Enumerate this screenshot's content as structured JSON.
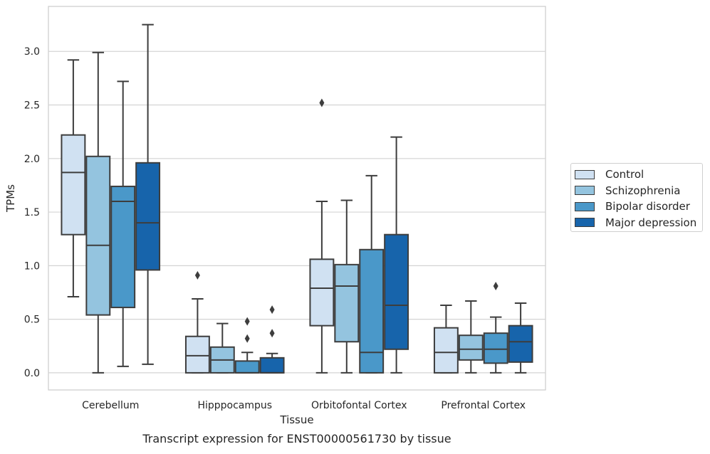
{
  "chart_data": {
    "type": "box",
    "title": "",
    "caption": "Transcript expression for ENST00000561730 by tissue",
    "xlabel": "Tissue",
    "ylabel": "TPMs",
    "ylim": [
      -0.16,
      3.42
    ],
    "yticks": [
      "0.0",
      "0.5",
      "1.0",
      "1.5",
      "2.0",
      "2.5",
      "3.0"
    ],
    "grid": "horizontal",
    "legend_position": "right",
    "categories": [
      "Cerebellum",
      "Hipppocampus",
      "Orbitofontal Cortex",
      "Prefrontal Cortex"
    ],
    "series": [
      {
        "name": "Control",
        "color": "#d0e1f2",
        "boxes": [
          {
            "whisker_low": 0.71,
            "q1": 1.29,
            "median": 1.87,
            "q3": 2.22,
            "whisker_high": 2.92,
            "outliers": []
          },
          {
            "whisker_low": 0.0,
            "q1": 0.0,
            "median": 0.16,
            "q3": 0.34,
            "whisker_high": 0.69,
            "outliers": [
              0.91
            ]
          },
          {
            "whisker_low": 0.0,
            "q1": 0.44,
            "median": 0.79,
            "q3": 1.06,
            "whisker_high": 1.6,
            "outliers": [
              2.52
            ]
          },
          {
            "whisker_low": 0.0,
            "q1": 0.0,
            "median": 0.19,
            "q3": 0.42,
            "whisker_high": 0.63,
            "outliers": []
          }
        ]
      },
      {
        "name": "Schizophrenia",
        "color": "#94c4df",
        "boxes": [
          {
            "whisker_low": 0.0,
            "q1": 0.54,
            "median": 1.19,
            "q3": 2.02,
            "whisker_high": 2.99,
            "outliers": []
          },
          {
            "whisker_low": 0.0,
            "q1": 0.0,
            "median": 0.12,
            "q3": 0.24,
            "whisker_high": 0.46,
            "outliers": []
          },
          {
            "whisker_low": 0.0,
            "q1": 0.29,
            "median": 0.81,
            "q3": 1.01,
            "whisker_high": 1.61,
            "outliers": []
          },
          {
            "whisker_low": 0.0,
            "q1": 0.12,
            "median": 0.22,
            "q3": 0.35,
            "whisker_high": 0.67,
            "outliers": []
          }
        ]
      },
      {
        "name": "Bipolar disorder",
        "color": "#4a98c9",
        "boxes": [
          {
            "whisker_low": 0.06,
            "q1": 0.61,
            "median": 1.6,
            "q3": 1.74,
            "whisker_high": 2.72,
            "outliers": []
          },
          {
            "whisker_low": 0.0,
            "q1": 0.0,
            "median": 0.0,
            "q3": 0.11,
            "whisker_high": 0.19,
            "outliers": [
              0.32,
              0.48
            ]
          },
          {
            "whisker_low": 0.0,
            "q1": 0.0,
            "median": 0.19,
            "q3": 1.15,
            "whisker_high": 1.84,
            "outliers": []
          },
          {
            "whisker_low": 0.0,
            "q1": 0.09,
            "median": 0.22,
            "q3": 0.37,
            "whisker_high": 0.52,
            "outliers": [
              0.81
            ]
          }
        ]
      },
      {
        "name": "Major depression",
        "color": "#1764ab",
        "boxes": [
          {
            "whisker_low": 0.08,
            "q1": 0.96,
            "median": 1.4,
            "q3": 1.96,
            "whisker_high": 3.25,
            "outliers": []
          },
          {
            "whisker_low": 0.0,
            "q1": 0.0,
            "median": 0.0,
            "q3": 0.14,
            "whisker_high": 0.18,
            "outliers": [
              0.37,
              0.59
            ]
          },
          {
            "whisker_low": 0.0,
            "q1": 0.22,
            "median": 0.63,
            "q3": 1.29,
            "whisker_high": 2.2,
            "outliers": []
          },
          {
            "whisker_low": 0.0,
            "q1": 0.1,
            "median": 0.29,
            "q3": 0.44,
            "whisker_high": 0.65,
            "outliers": []
          }
        ]
      }
    ]
  }
}
